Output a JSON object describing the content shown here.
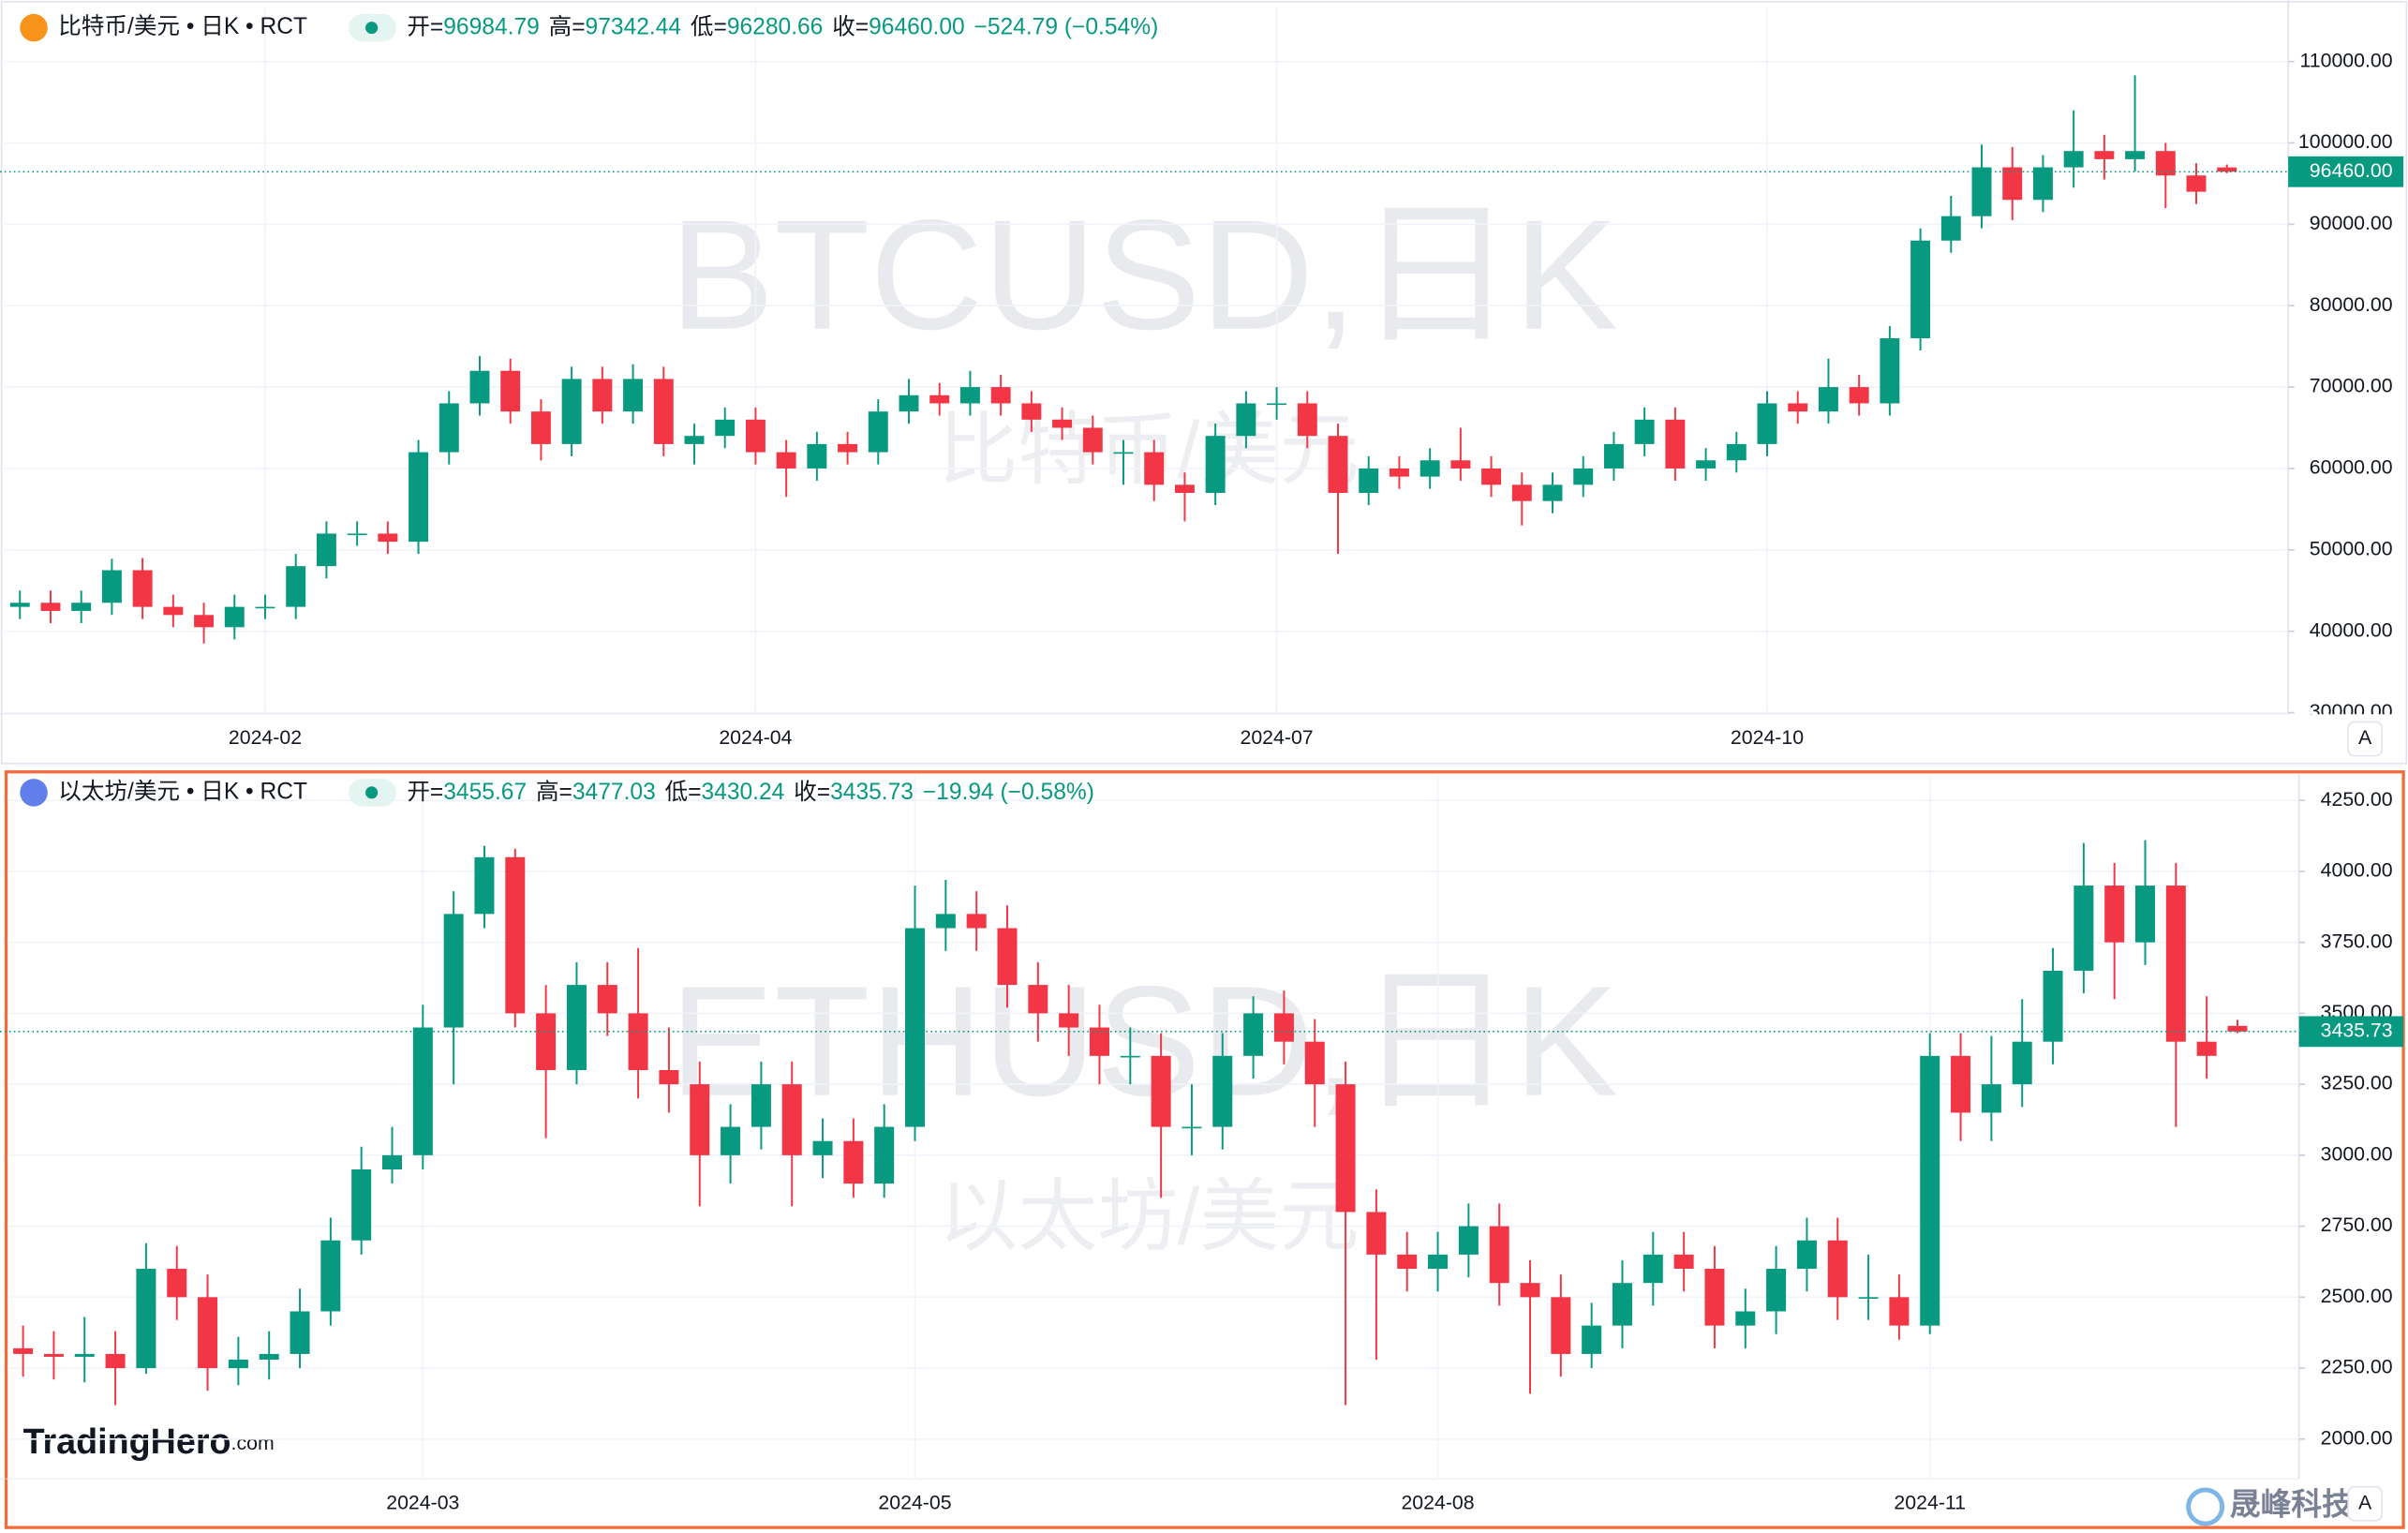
{
  "chart_data": [
    {
      "type": "candlestick",
      "symbol": "比特币/美元 • 日K • RCT",
      "watermark": "BTCUSD,日K",
      "watermark_sub": "比特币/美元",
      "ohlc_labels": [
        "开=",
        "高=",
        "低=",
        "收="
      ],
      "last_value_labels": [
        "96984.79",
        "97342.44",
        "96280.66",
        "96460.00"
      ],
      "change_label": "−524.79 (−0.54%)",
      "last_price_label": "96460.00",
      "scale_button": "A",
      "icon_color": "#f7931a",
      "up_color": "#089981",
      "down_color": "#f23645",
      "grid": true,
      "ylim": [
        29800,
        116600
      ],
      "yticks": [
        {
          "value": 30000,
          "label": "30000.00"
        },
        {
          "value": 40000,
          "label": "40000.00"
        },
        {
          "value": 50000,
          "label": "50000.00"
        },
        {
          "value": 60000,
          "label": "60000.00"
        },
        {
          "value": 70000,
          "label": "70000.00"
        },
        {
          "value": 80000,
          "label": "80000.00"
        },
        {
          "value": 90000,
          "label": "90000.00"
        },
        {
          "value": 100000,
          "label": "100000.00"
        },
        {
          "value": 110000,
          "label": "110000.00"
        }
      ],
      "categories": [
        null,
        null,
        null,
        null,
        null,
        null,
        null,
        null,
        "2024-02",
        null,
        null,
        null,
        null,
        null,
        null,
        null,
        null,
        null,
        null,
        null,
        null,
        null,
        null,
        null,
        "2024-04",
        null,
        null,
        null,
        null,
        null,
        null,
        null,
        null,
        null,
        null,
        null,
        null,
        null,
        null,
        null,
        null,
        "2024-07",
        null,
        null,
        null,
        null,
        null,
        null,
        null,
        null,
        null,
        null,
        null,
        null,
        null,
        null,
        null,
        "2024-10",
        null,
        null,
        null,
        null,
        null,
        null,
        null,
        null,
        null,
        null,
        null,
        null,
        null,
        null,
        null
      ],
      "open": [
        43000,
        43500,
        42500,
        43500,
        47500,
        43000,
        42000,
        40500,
        43000,
        43000,
        48000,
        52000,
        52000,
        51000,
        62000,
        68000,
        72000,
        67000,
        63000,
        71000,
        67000,
        71000,
        63000,
        64000,
        66000,
        62000,
        60000,
        63000,
        62000,
        67000,
        69000,
        68000,
        70000,
        68000,
        66000,
        65000,
        62000,
        62000,
        58000,
        57000,
        64000,
        68000,
        68000,
        64000,
        57000,
        60000,
        59000,
        61000,
        60000,
        58000,
        56000,
        58000,
        60000,
        63000,
        66000,
        60000,
        61000,
        63000,
        68000,
        67000,
        70000,
        68000,
        76000,
        88000,
        91000,
        97000,
        93000,
        97000,
        99000,
        98000,
        99000,
        96000,
        96984.79
      ],
      "high": [
        45000,
        45000,
        45000,
        48900,
        49000,
        44500,
        43500,
        44500,
        44500,
        49500,
        53500,
        53500,
        53500,
        63500,
        69500,
        73800,
        73500,
        68500,
        72500,
        72500,
        72800,
        72500,
        65500,
        67500,
        67500,
        63500,
        64500,
        64500,
        68500,
        71000,
        70500,
        72000,
        71500,
        69500,
        67500,
        66500,
        63500,
        63500,
        59500,
        65500,
        69500,
        70000,
        69500,
        65500,
        61500,
        61500,
        62500,
        65000,
        61500,
        59500,
        59500,
        61500,
        64500,
        67500,
        67500,
        62500,
        64500,
        69500,
        69500,
        73500,
        71500,
        77500,
        89500,
        93500,
        99800,
        99500,
        98500,
        104000,
        101000,
        108300,
        100000,
        97500,
        97342.44
      ],
      "low": [
        41500,
        41000,
        41000,
        42000,
        41500,
        40500,
        38500,
        39000,
        41500,
        41500,
        46500,
        50500,
        49500,
        49500,
        60500,
        66500,
        65500,
        61000,
        61500,
        65500,
        65500,
        61500,
        60500,
        62500,
        60500,
        56500,
        58500,
        60500,
        60500,
        65500,
        66500,
        66500,
        66500,
        64500,
        63500,
        60500,
        58000,
        56000,
        53500,
        55500,
        62500,
        66000,
        62500,
        49500,
        55500,
        57500,
        57500,
        58500,
        56500,
        53000,
        54500,
        56500,
        58500,
        61500,
        58500,
        58500,
        59500,
        61500,
        65500,
        65500,
        66500,
        66500,
        74500,
        86500,
        89500,
        90500,
        91500,
        94500,
        95500,
        96500,
        92000,
        92500,
        96280.66
      ],
      "close": [
        43500,
        42500,
        43500,
        47500,
        43000,
        42000,
        40500,
        43000,
        43000,
        48000,
        52000,
        52000,
        51000,
        62000,
        68000,
        72000,
        67000,
        63000,
        71000,
        67000,
        71000,
        63000,
        64000,
        66000,
        62000,
        60000,
        63000,
        62000,
        67000,
        69000,
        68000,
        70000,
        68000,
        66000,
        65000,
        62000,
        62000,
        58000,
        57000,
        64000,
        68000,
        68000,
        64000,
        57000,
        60000,
        59000,
        61000,
        60000,
        58000,
        56000,
        58000,
        60000,
        63000,
        66000,
        60000,
        61000,
        63000,
        68000,
        67000,
        70000,
        68000,
        76000,
        88000,
        91000,
        97000,
        93000,
        97000,
        99000,
        98000,
        99000,
        96000,
        94000,
        96460
      ]
    },
    {
      "type": "candlestick",
      "symbol": "以太坊/美元 • 日K • RCT",
      "watermark": "ETHUSD,日K",
      "watermark_sub": "以太坊/美元",
      "ohlc_labels": [
        "开=",
        "高=",
        "低=",
        "收="
      ],
      "last_value_labels": [
        "3455.67",
        "3477.03",
        "3430.24",
        "3435.73"
      ],
      "change_label": "−19.94 (−0.58%)",
      "last_price_label": "3435.73",
      "scale_button": "A",
      "icon_color": "#627eea",
      "up_color": "#089981",
      "down_color": "#f23645",
      "grid": true,
      "ylim": [
        1859,
        4337
      ],
      "yticks": [
        {
          "value": 2000,
          "label": "2000.00"
        },
        {
          "value": 2250,
          "label": "2250.00"
        },
        {
          "value": 2500,
          "label": "2500.00"
        },
        {
          "value": 2750,
          "label": "2750.00"
        },
        {
          "value": 3000,
          "label": "3000.00"
        },
        {
          "value": 3250,
          "label": "3250.00"
        },
        {
          "value": 3500,
          "label": "3500.00"
        },
        {
          "value": 3750,
          "label": "3750.00"
        },
        {
          "value": 4000,
          "label": "4000.00"
        },
        {
          "value": 4250,
          "label": "4250.00"
        }
      ],
      "categories": [
        null,
        null,
        null,
        null,
        null,
        null,
        null,
        null,
        null,
        null,
        null,
        null,
        null,
        "2024-03",
        null,
        null,
        null,
        null,
        null,
        null,
        null,
        null,
        null,
        null,
        null,
        null,
        null,
        null,
        null,
        "2024-05",
        null,
        null,
        null,
        null,
        null,
        null,
        null,
        null,
        null,
        null,
        null,
        null,
        null,
        null,
        null,
        null,
        "2024-08",
        null,
        null,
        null,
        null,
        null,
        null,
        null,
        null,
        null,
        null,
        null,
        null,
        null,
        null,
        null,
        "2024-11",
        null,
        null,
        null,
        null,
        null,
        null,
        null,
        null,
        null,
        null
      ],
      "open": [
        2320,
        2300,
        2290,
        2300,
        2250,
        2600,
        2500,
        2250,
        2280,
        2300,
        2450,
        2700,
        2950,
        3000,
        3450,
        3850,
        4050,
        3500,
        3300,
        3600,
        3500,
        3300,
        3250,
        3000,
        3100,
        3250,
        3000,
        3050,
        2900,
        3100,
        3800,
        3850,
        3800,
        3600,
        3500,
        3450,
        3350,
        3350,
        3100,
        3100,
        3350,
        3500,
        3400,
        3250,
        2800,
        2650,
        2600,
        2650,
        2750,
        2550,
        2500,
        2300,
        2400,
        2550,
        2650,
        2600,
        2400,
        2450,
        2600,
        2700,
        2500,
        2500,
        2400,
        3350,
        3150,
        3250,
        3400,
        3650,
        3950,
        3750,
        3950,
        3400,
        3455.67
      ],
      "high": [
        2400,
        2380,
        2430,
        2380,
        2690,
        2680,
        2580,
        2360,
        2380,
        2530,
        2780,
        3030,
        3100,
        3530,
        3930,
        4090,
        4080,
        3600,
        3680,
        3680,
        3730,
        3450,
        3330,
        3180,
        3330,
        3330,
        3130,
        3130,
        3180,
        3950,
        3970,
        3930,
        3880,
        3680,
        3600,
        3530,
        3450,
        3430,
        3250,
        3430,
        3560,
        3580,
        3480,
        3330,
        2880,
        2730,
        2730,
        2830,
        2830,
        2630,
        2580,
        2480,
        2630,
        2730,
        2730,
        2680,
        2530,
        2680,
        2780,
        2780,
        2650,
        2580,
        3430,
        3430,
        3420,
        3550,
        3730,
        4100,
        4030,
        4110,
        4030,
        3560,
        3477.03
      ],
      "low": [
        2220,
        2210,
        2200,
        2120,
        2230,
        2420,
        2170,
        2190,
        2210,
        2250,
        2400,
        2650,
        2900,
        2950,
        3250,
        3800,
        3450,
        3060,
        3250,
        3420,
        3200,
        3150,
        2820,
        2900,
        3020,
        2820,
        2920,
        2850,
        2850,
        3050,
        3720,
        3720,
        3520,
        3400,
        3350,
        3250,
        3250,
        2850,
        3000,
        3020,
        3270,
        3320,
        3100,
        2120,
        2280,
        2520,
        2520,
        2570,
        2470,
        2160,
        2220,
        2250,
        2320,
        2470,
        2520,
        2320,
        2320,
        2370,
        2520,
        2420,
        2420,
        2350,
        2370,
        3050,
        3050,
        3170,
        3320,
        3570,
        3550,
        3670,
        3100,
        3270,
        3430.24
      ],
      "close": [
        2300,
        2290,
        2300,
        2250,
        2600,
        2500,
        2250,
        2280,
        2300,
        2450,
        2700,
        2950,
        3000,
        3450,
        3850,
        4050,
        3500,
        3300,
        3600,
        3500,
        3300,
        3250,
        3000,
        3100,
        3250,
        3000,
        3050,
        2900,
        3100,
        3800,
        3850,
        3800,
        3600,
        3500,
        3450,
        3350,
        3350,
        3100,
        3100,
        3350,
        3500,
        3400,
        3250,
        2800,
        2650,
        2600,
        2650,
        2750,
        2550,
        2500,
        2300,
        2400,
        2550,
        2650,
        2600,
        2400,
        2450,
        2600,
        2700,
        2500,
        2500,
        2400,
        3350,
        3150,
        3250,
        3400,
        3650,
        3950,
        3750,
        3950,
        3400,
        3350,
        3435.73
      ]
    }
  ],
  "brand": [
    "TradingHero",
    ".com"
  ],
  "corner_mark": "晟峰科技"
}
